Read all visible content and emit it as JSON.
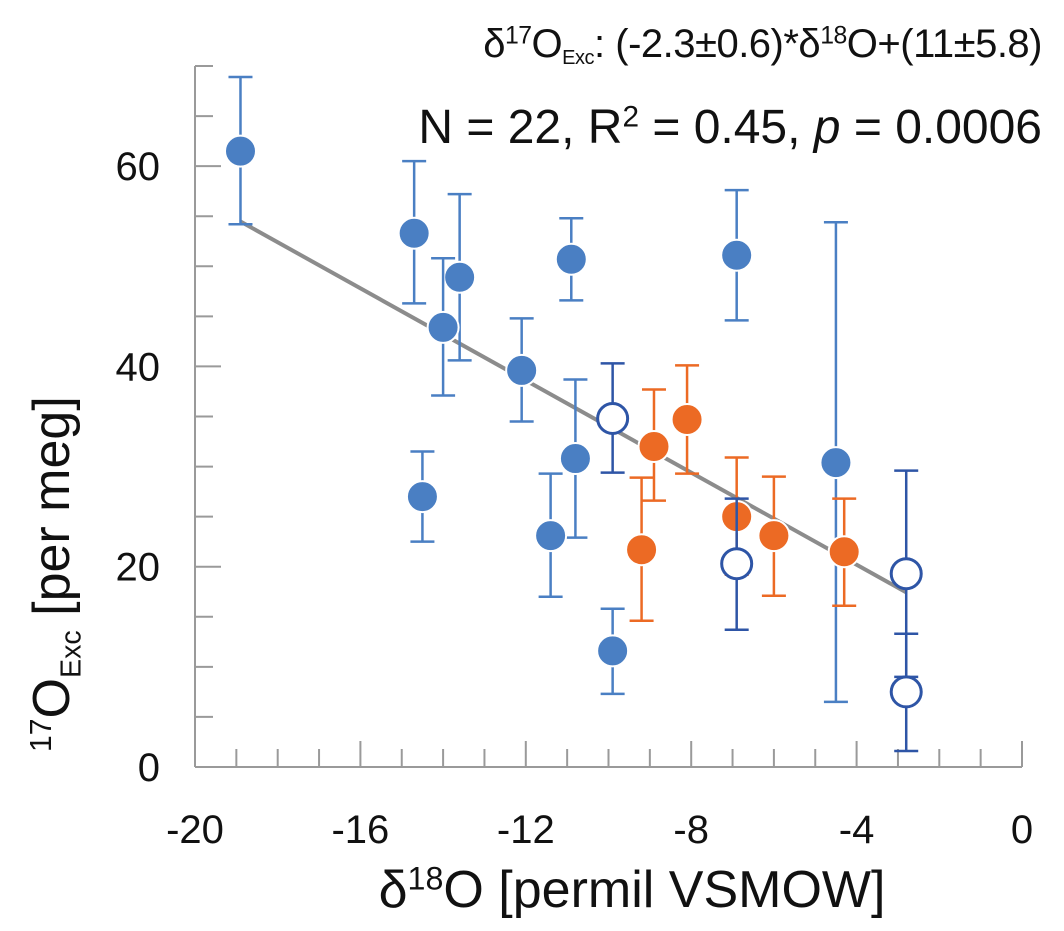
{
  "chart_data": {
    "type": "scatter",
    "title": "",
    "annotations": {
      "equation": {
        "prefix": "δ",
        "sup": "17",
        "species": "O",
        "sub": "Exc",
        "body_a": ": (-2.3±0.6)*δ",
        "body_sup": "18",
        "body_b": "O+(11±5.8)"
      },
      "stats": {
        "n_text": "N = 22, R",
        "r_sup": "2",
        "mid_text": " = 0.45, ",
        "p_label": "p",
        "p_text": " = 0.0006"
      }
    },
    "xlabel": {
      "prefix": "δ",
      "sup": "18",
      "rest": "O [permil VSMOW]"
    },
    "ylabel": {
      "sup": "17",
      "species": "O",
      "sub": "Exc",
      "rest": " [per meg]"
    },
    "xlim": [
      -20,
      0
    ],
    "ylim": [
      0,
      70
    ],
    "xticks": [
      -20,
      -16,
      -12,
      -8,
      -4,
      0
    ],
    "xtick_labels": [
      "-20",
      "-16",
      "-12",
      "-8",
      "-4",
      "0"
    ],
    "x_minor_step": 1,
    "yticks": [
      0,
      20,
      40,
      60
    ],
    "ytick_labels": [
      "0",
      "20",
      "40",
      "60"
    ],
    "y_minor_step": 5,
    "grid": false,
    "colors": {
      "blue": "#4a7fc3",
      "orange": "#ec6a24",
      "navy": "#2e55a6",
      "fit": "#8c8c8c",
      "axis": "#9a9a9a",
      "text": "#111111"
    },
    "series": [
      {
        "marker": "filled",
        "color_key": "blue",
        "points": [
          {
            "x": -18.9,
            "y": 61.5,
            "ylow": 54.2,
            "yhigh": 68.9
          },
          {
            "x": -14.7,
            "y": 53.3,
            "ylow": 46.3,
            "yhigh": 60.5
          },
          {
            "x": -13.6,
            "y": 48.9,
            "ylow": 40.6,
            "yhigh": 57.2
          },
          {
            "x": -14.0,
            "y": 43.9,
            "ylow": 37.1,
            "yhigh": 50.8
          },
          {
            "x": -12.1,
            "y": 39.6,
            "ylow": 34.5,
            "yhigh": 44.8
          },
          {
            "x": -10.9,
            "y": 50.7,
            "ylow": 46.6,
            "yhigh": 54.8
          },
          {
            "x": -6.9,
            "y": 51.1,
            "ylow": 44.6,
            "yhigh": 57.6
          },
          {
            "x": -14.5,
            "y": 27.0,
            "ylow": 22.5,
            "yhigh": 31.5
          },
          {
            "x": -10.8,
            "y": 30.8,
            "ylow": 22.9,
            "yhigh": 38.7
          },
          {
            "x": -11.4,
            "y": 23.1,
            "ylow": 17.0,
            "yhigh": 29.3
          },
          {
            "x": -9.9,
            "y": 11.6,
            "ylow": 7.3,
            "yhigh": 15.8
          },
          {
            "x": -4.5,
            "y": 30.4,
            "ylow": 6.5,
            "yhigh": 54.4
          }
        ]
      },
      {
        "marker": "filled",
        "color_key": "orange",
        "points": [
          {
            "x": -8.9,
            "y": 32.0,
            "ylow": 26.6,
            "yhigh": 37.7
          },
          {
            "x": -8.1,
            "y": 34.7,
            "ylow": 29.3,
            "yhigh": 40.1
          },
          {
            "x": -9.2,
            "y": 21.7,
            "ylow": 14.6,
            "yhigh": 28.9
          },
          {
            "x": -6.9,
            "y": 25.0,
            "ylow": 19.2,
            "yhigh": 30.9
          },
          {
            "x": -6.0,
            "y": 23.1,
            "ylow": 17.1,
            "yhigh": 29.0
          },
          {
            "x": -4.3,
            "y": 21.5,
            "ylow": 16.1,
            "yhigh": 26.8
          }
        ]
      },
      {
        "marker": "open",
        "color_key": "navy",
        "points": [
          {
            "x": -9.9,
            "y": 34.8,
            "ylow": 29.4,
            "yhigh": 40.3
          },
          {
            "x": -6.9,
            "y": 20.3,
            "ylow": 13.7,
            "yhigh": 26.8
          },
          {
            "x": -2.8,
            "y": 19.3,
            "ylow": 9.0,
            "yhigh": 29.6
          },
          {
            "x": -2.8,
            "y": 7.5,
            "ylow": 1.6,
            "yhigh": 13.3
          }
        ]
      }
    ],
    "fit": {
      "slope": -2.3,
      "intercept": 11,
      "x_range": [
        -18.9,
        -2.8
      ]
    }
  }
}
